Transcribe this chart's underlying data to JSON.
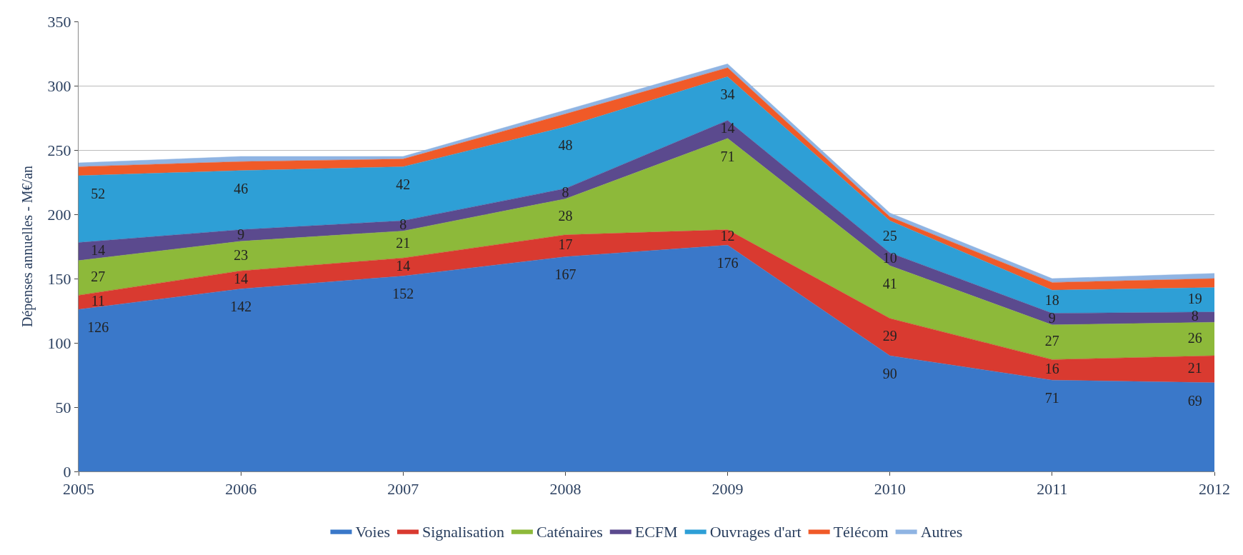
{
  "chart_data": {
    "type": "area",
    "stacked": true,
    "ylabel": "Dépenses annuelles - M€/an",
    "categories": [
      "2005",
      "2006",
      "2007",
      "2008",
      "2009",
      "2010",
      "2011",
      "2012"
    ],
    "ylim": [
      0,
      350
    ],
    "yticks": [
      0,
      50,
      100,
      150,
      200,
      250,
      300,
      350
    ],
    "grid": "y",
    "legend": "bottom",
    "series": [
      {
        "name": "Voies",
        "color": "#3a78c9",
        "values": [
          126,
          142,
          152,
          167,
          176,
          90,
          71,
          69
        ],
        "value_labels": [
          "126",
          "142",
          "152",
          "167",
          "176",
          "90",
          "71",
          "69"
        ]
      },
      {
        "name": "Signalisation",
        "color": "#d93a30",
        "values": [
          11,
          14,
          14,
          17,
          12,
          29,
          16,
          21
        ],
        "value_labels": [
          "11",
          "14",
          "14",
          "17",
          "12",
          "29",
          "16",
          "21"
        ]
      },
      {
        "name": "Caténaires",
        "color": "#8db93a",
        "values": [
          27,
          23,
          21,
          28,
          71,
          41,
          27,
          26
        ],
        "value_labels": [
          "27",
          "23",
          "21",
          "28",
          "71",
          "41",
          "27",
          "26"
        ]
      },
      {
        "name": "ECFM",
        "color": "#5b4a8e",
        "values": [
          14,
          9,
          8,
          8,
          14,
          10,
          9,
          8
        ],
        "value_labels": [
          "14",
          "9",
          "8",
          "8",
          "14",
          "10",
          "9",
          "8"
        ]
      },
      {
        "name": "Ouvrages d'art",
        "color": "#2e9fd6",
        "values": [
          52,
          46,
          42,
          48,
          34,
          25,
          18,
          19
        ],
        "value_labels": [
          "52",
          "46",
          "42",
          "48",
          "34",
          "25",
          "18",
          "19"
        ]
      },
      {
        "name": "Télécom",
        "color": "#f05a28",
        "values": [
          7,
          7,
          6,
          10,
          7,
          3,
          6,
          7
        ]
      },
      {
        "name": "Autres",
        "color": "#8fb4e3",
        "values": [
          3,
          4,
          2,
          3,
          3,
          3,
          3,
          4
        ]
      }
    ]
  }
}
